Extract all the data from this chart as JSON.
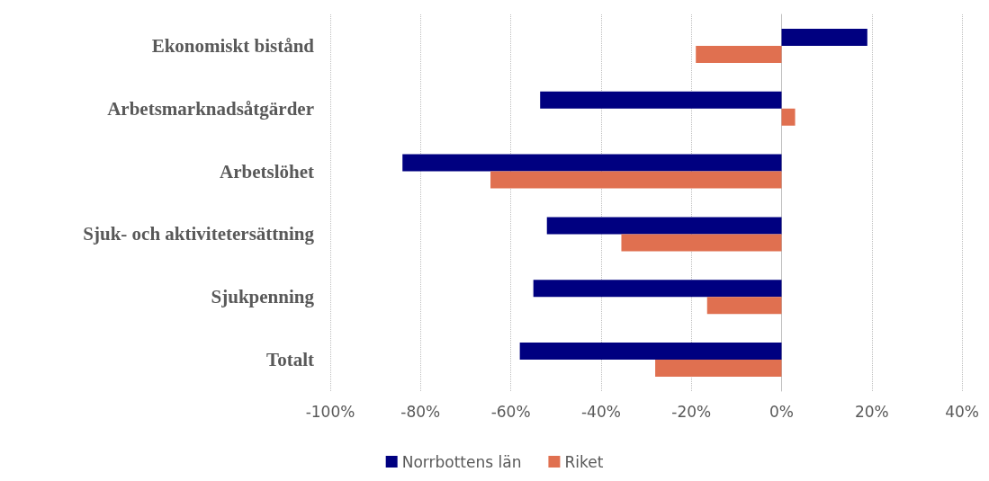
{
  "chart_data": {
    "type": "bar",
    "orientation": "horizontal",
    "categories": [
      "Ekonomiskt bistånd",
      "Arbetsmarknadsåtgärder",
      "Arbetslöhet",
      "Sjuk- och aktivitetersättning",
      "Sjukpenning",
      "Totalt"
    ],
    "series": [
      {
        "name": "Norrbottens län",
        "color": "#000080",
        "values": [
          19,
          -53.5,
          -84,
          -52,
          -55,
          -58
        ]
      },
      {
        "name": "Riket",
        "color": "#e07050",
        "values": [
          -19,
          3,
          -64.5,
          -35.5,
          -16.5,
          -28
        ]
      }
    ],
    "xlim": [
      -100,
      40
    ],
    "xticks": [
      {
        "value": -100,
        "label": "-100%"
      },
      {
        "value": -80,
        "label": "-80%"
      },
      {
        "value": -60,
        "label": "-60%"
      },
      {
        "value": -40,
        "label": "-40%"
      },
      {
        "value": -20,
        "label": "-20%"
      },
      {
        "value": 0,
        "label": "0%"
      },
      {
        "value": 20,
        "label": "20%"
      },
      {
        "value": 40,
        "label": "40%"
      }
    ],
    "grid": "x",
    "legend": "bottom"
  }
}
